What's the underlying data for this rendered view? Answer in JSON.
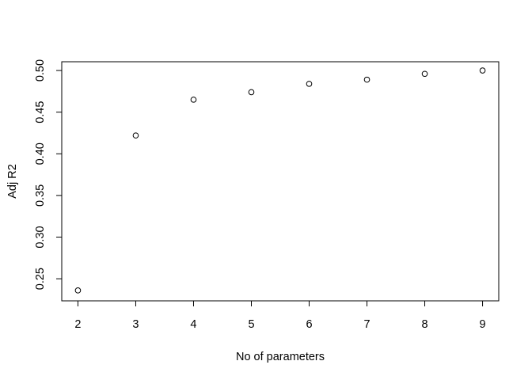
{
  "chart_data": {
    "type": "scatter",
    "title": "",
    "xlabel": "No of parameters",
    "ylabel": "Adj R2",
    "xlim": [
      1.72,
      9.28
    ],
    "ylim": [
      0.2235,
      0.5105
    ],
    "xticks": [
      "2",
      "3",
      "4",
      "5",
      "6",
      "7",
      "8",
      "9"
    ],
    "yticks": [
      "0.25",
      "0.30",
      "0.35",
      "0.40",
      "0.45",
      "0.50"
    ],
    "grid": false,
    "marker": "open-circle",
    "series": [
      {
        "x": [
          2,
          3,
          4,
          5,
          6,
          7,
          8,
          9
        ],
        "y": [
          0.236,
          0.422,
          0.465,
          0.474,
          0.484,
          0.489,
          0.496,
          0.5
        ]
      }
    ]
  }
}
